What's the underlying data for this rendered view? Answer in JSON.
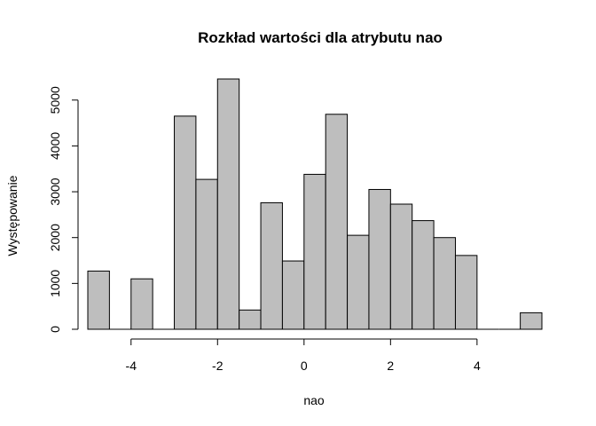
{
  "chart_data": {
    "type": "bar",
    "title": "Rozkład wartości dla atrybutu nao",
    "xlabel": "nao",
    "ylabel": "Występowanie",
    "bin_edges": [
      -5,
      -4.5,
      -4,
      -3.5,
      -3,
      -2.5,
      -2,
      -1.5,
      -1,
      -0.5,
      0,
      0.5,
      1,
      1.5,
      2,
      2.5,
      3,
      3.5,
      4,
      4.5,
      5,
      5.5
    ],
    "values": [
      1270,
      0,
      1100,
      0,
      4650,
      3270,
      5460,
      420,
      2760,
      1490,
      3380,
      4690,
      2050,
      3050,
      2730,
      2370,
      2000,
      1610,
      0,
      0,
      360
    ],
    "xlim": [
      -5,
      5.5
    ],
    "ylim": [
      0,
      5460
    ],
    "x_ticks": [
      -4,
      -2,
      0,
      2,
      4
    ],
    "y_ticks": [
      0,
      1000,
      2000,
      3000,
      4000,
      5000
    ],
    "bar_color": "#bebebe",
    "edge_color": "#000000",
    "grid": false,
    "legend": "none"
  }
}
